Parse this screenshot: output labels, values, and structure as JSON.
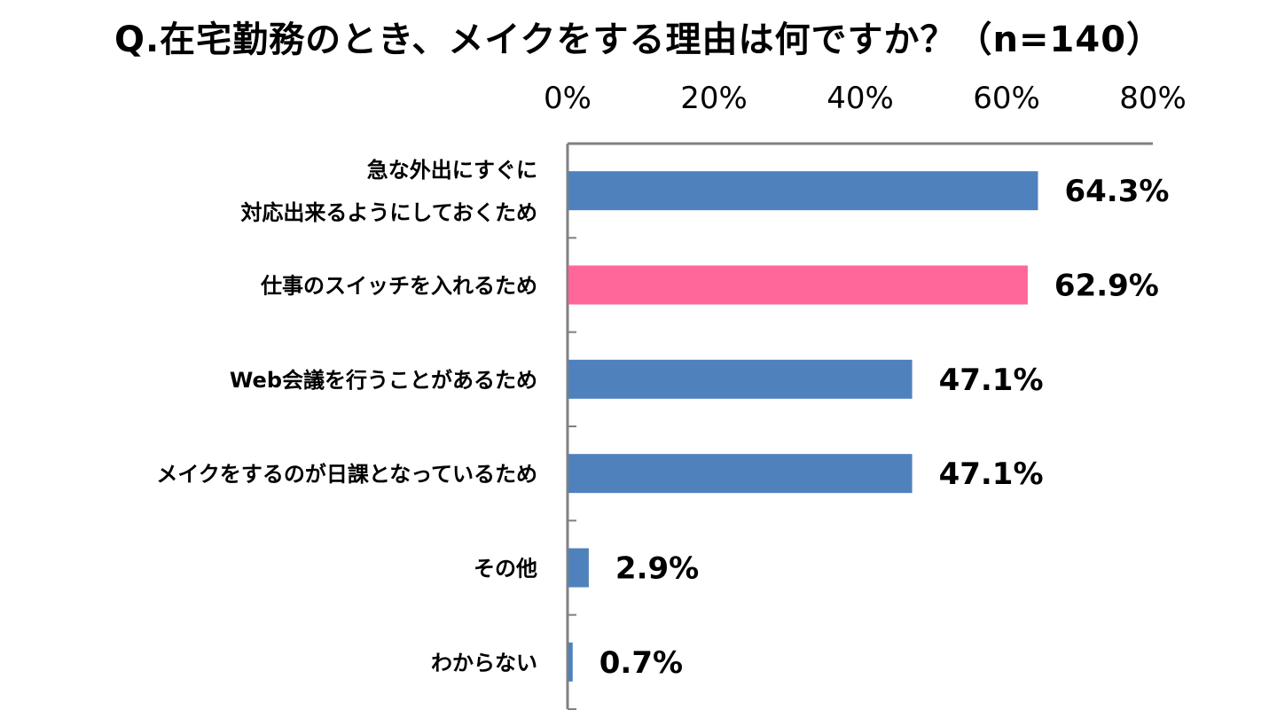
{
  "chart_data": {
    "type": "bar",
    "orientation": "horizontal",
    "title": "Q.在宅勤務のとき、メイクをする理由は何ですか？（n=140）",
    "xlim": [
      0,
      80
    ],
    "xticks": [
      "0%",
      "20%",
      "40%",
      "60%",
      "80%"
    ],
    "tick_values": [
      0,
      20,
      40,
      60,
      80
    ],
    "categories": [
      [
        "急な外出にすぐに",
        "対応出来るようにしておくため"
      ],
      [
        "仕事のスイッチを入れるため"
      ],
      [
        "Web会議を行うことがあるため"
      ],
      [
        "メイクをするのが日課となっているため"
      ],
      [
        "その他"
      ],
      [
        "わからない"
      ]
    ],
    "values": [
      64.3,
      62.9,
      47.1,
      47.1,
      2.9,
      0.7
    ],
    "value_labels": [
      "64.3%",
      "62.9%",
      "47.1%",
      "47.1%",
      "2.9%",
      "0.7%"
    ],
    "bar_colors": [
      "#4f81bd",
      "#ff6699",
      "#4f81bd",
      "#4f81bd",
      "#4f81bd",
      "#4f81bd"
    ],
    "axis_color": "#808080"
  }
}
